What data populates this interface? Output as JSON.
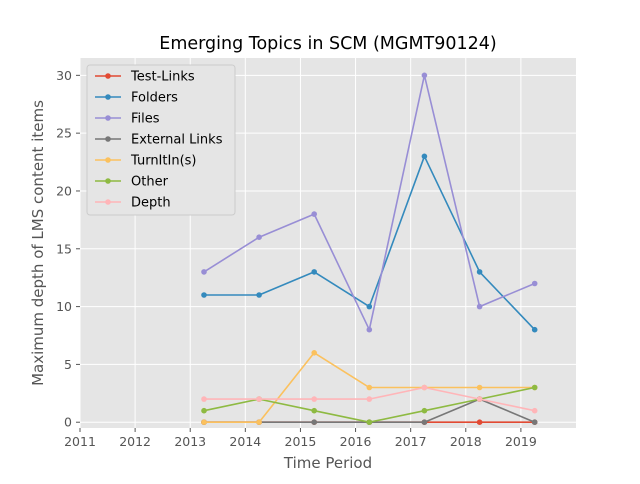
{
  "chart_data": {
    "type": "line",
    "title": "Emerging Topics in SCM (MGMT90124)",
    "xlabel": "Time Period",
    "ylabel": "Maximum depth of LMS content items",
    "xlim": [
      2011.0,
      2020.0
    ],
    "ylim": [
      -0.5,
      31.5
    ],
    "x_ticks": [
      "2011",
      "2012",
      "2013",
      "2014",
      "2015",
      "2016",
      "2017",
      "2018",
      "2019"
    ],
    "y_ticks": [
      "0",
      "5",
      "10",
      "15",
      "20",
      "25",
      "30"
    ],
    "grid": true,
    "legend_position": "top-left",
    "x": [
      "2013-04",
      "2014-04",
      "2015-04",
      "2016-04",
      "2017-04",
      "2018-04",
      "2019-04"
    ],
    "series": [
      {
        "name": "Test-Links",
        "color": "#E24A33",
        "values": [
          0,
          0,
          0,
          0,
          0,
          0,
          0
        ]
      },
      {
        "name": "Folders",
        "color": "#348ABD",
        "values": [
          11,
          11,
          13,
          10,
          23,
          13,
          8
        ]
      },
      {
        "name": "Files",
        "color": "#988ED5",
        "values": [
          13,
          16,
          18,
          8,
          30,
          10,
          12
        ]
      },
      {
        "name": "External Links",
        "color": "#777777",
        "values": [
          0,
          0,
          0,
          0,
          0,
          2,
          0
        ]
      },
      {
        "name": "TurnItIn(s)",
        "color": "#FBC15E",
        "values": [
          0,
          0,
          6,
          3,
          3,
          3,
          3
        ]
      },
      {
        "name": "Other",
        "color": "#8EBA42",
        "values": [
          1,
          2,
          1,
          0,
          1,
          2,
          3
        ]
      },
      {
        "name": "Depth",
        "color": "#FFB5B8",
        "values": [
          2,
          2,
          2,
          2,
          3,
          2,
          1
        ]
      }
    ]
  }
}
